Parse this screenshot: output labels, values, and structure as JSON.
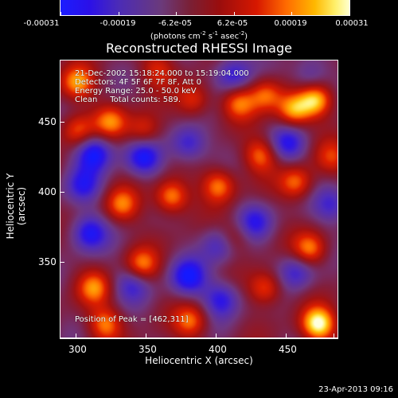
{
  "colorbar": {
    "labels": [
      "-0.00031",
      "-0.00019",
      "-6.2e-05",
      "6.2e-05",
      "0.00019",
      "0.00031"
    ],
    "units": "(photons cm",
    "units_exp1": "-2",
    "units_mid": " s",
    "units_exp2": "-1",
    "units_tail": " asec",
    "units_exp3": "-2",
    "units_close": ")"
  },
  "title": "Reconstructed RHESSI Image",
  "overlay": {
    "line1": "21-Dec-2002 15:18:24.000 to 15:19:04.000",
    "line2": "Detectors: 4F 5F 6F 7F 8F, Att 0",
    "line3": "Energy Range: 25.0 - 50.0 keV",
    "line4": "Clean     Total counts: 589.",
    "peak": "Position of Peak = [462,311]"
  },
  "chart_data": {
    "type": "heatmap",
    "title": "Reconstructed RHESSI Image",
    "xlabel": "Heliocentric X (arcsec)",
    "ylabel": "Heliocentric Y (arcsec)",
    "x_ticks": [
      300,
      350,
      400,
      450
    ],
    "y_ticks": [
      350,
      400,
      450
    ],
    "xlim": [
      290,
      482
    ],
    "ylim": [
      298,
      490
    ],
    "color_range": [
      -0.00031,
      0.00031
    ],
    "color_ticks": [
      -0.00031,
      -0.00019,
      -6.2e-05,
      6.2e-05,
      0.00019,
      0.00031
    ],
    "peak_position": [
      462,
      311
    ]
  },
  "timestamp": "23-Apr-2013 09:16"
}
